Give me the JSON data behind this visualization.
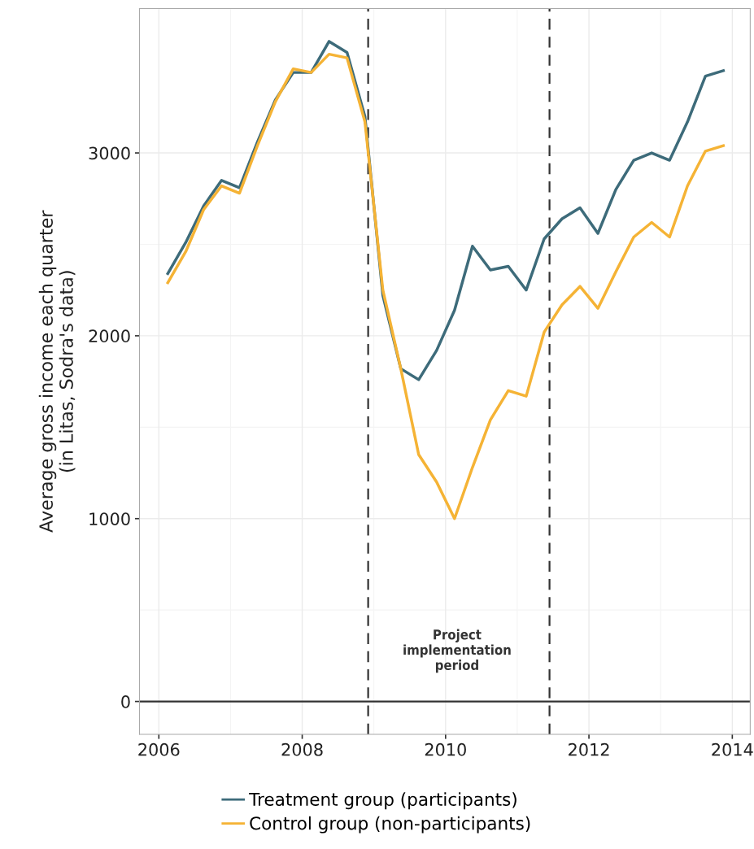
{
  "chart_data": {
    "type": "line",
    "ylabel": "Average gross income each quarter\n(in Litas, Sodra's data)",
    "x": [
      2006.125,
      2006.375,
      2006.625,
      2006.875,
      2007.125,
      2007.375,
      2007.625,
      2007.875,
      2008.125,
      2008.375,
      2008.625,
      2008.875,
      2009.125,
      2009.375,
      2009.625,
      2009.875,
      2010.125,
      2010.375,
      2010.625,
      2010.875,
      2011.125,
      2011.375,
      2011.625,
      2011.875,
      2012.125,
      2012.375,
      2012.625,
      2012.875,
      2013.125,
      2013.375,
      2013.625,
      2013.875
    ],
    "series": [
      {
        "name": "Treatment group (participants)",
        "color": "#3d6b7a",
        "values": [
          2340,
          2510,
          2710,
          2850,
          2810,
          3060,
          3290,
          3440,
          3440,
          3610,
          3550,
          3200,
          2220,
          1820,
          1760,
          1920,
          2140,
          2490,
          2360,
          2380,
          2250,
          2530,
          2640,
          2700,
          2560,
          2800,
          2960,
          3000,
          2960,
          3170,
          3420,
          3450
        ]
      },
      {
        "name": "Control group (non-participants)",
        "color": "#f5b335",
        "values": [
          2290,
          2460,
          2690,
          2820,
          2780,
          3040,
          3280,
          3460,
          3440,
          3540,
          3520,
          3170,
          2250,
          1820,
          1350,
          1200,
          1000,
          1280,
          1540,
          1700,
          1670,
          2020,
          2170,
          2270,
          2150,
          2350,
          2540,
          2620,
          2540,
          2820,
          3010,
          3040
        ]
      }
    ],
    "xlim": [
      2005.73,
      2014.25
    ],
    "xticks": [
      2006,
      2008,
      2010,
      2012,
      2014
    ],
    "ylim": [
      -180,
      3790
    ],
    "yticks": [
      0,
      1000,
      2000,
      3000
    ],
    "ref_lines": [
      {
        "axis": "y",
        "value": 0,
        "color": "#333333",
        "line_style": "solid"
      },
      {
        "axis": "x",
        "value": 2008.92,
        "color": "#333333",
        "line_style": "dashed"
      },
      {
        "axis": "x",
        "value": 2011.45,
        "color": "#333333",
        "line_style": "dashed"
      }
    ],
    "annotations": [
      "Project\nimplementation\nperiod"
    ],
    "grid": true,
    "legend": "bottom",
    "line_style": "solid",
    "marker": "none"
  }
}
